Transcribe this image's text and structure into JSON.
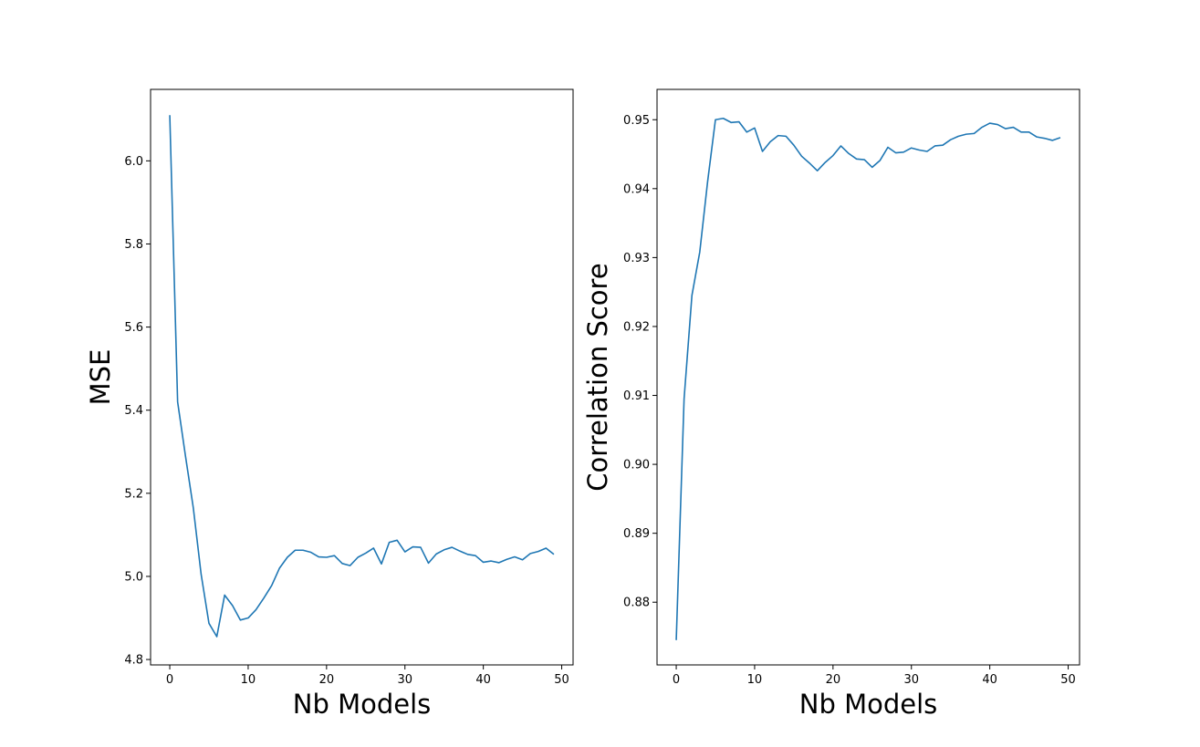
{
  "colors": {
    "series": "#1f77b4",
    "axis": "#000000",
    "background": "#ffffff"
  },
  "chart_data": [
    {
      "type": "line",
      "xlabel": "Nb Models",
      "ylabel": "MSE",
      "xlim": [
        -2.45,
        51.45
      ],
      "ylim": [
        4.787,
        6.172
      ],
      "xticks": [
        0,
        10,
        20,
        30,
        40,
        50
      ],
      "xtick_labels": [
        "0",
        "10",
        "20",
        "30",
        "40",
        "50"
      ],
      "yticks": [
        4.8,
        5.0,
        5.2,
        5.4,
        5.6,
        5.8,
        6.0
      ],
      "ytick_labels": [
        "4.8",
        "5.0",
        "5.2",
        "5.4",
        "5.6",
        "5.8",
        "6.0"
      ],
      "grid": false,
      "x": [
        0,
        1,
        2,
        3,
        4,
        5,
        6,
        7,
        8,
        9,
        10,
        11,
        12,
        13,
        14,
        15,
        16,
        17,
        18,
        19,
        20,
        21,
        22,
        23,
        24,
        25,
        26,
        27,
        28,
        29,
        30,
        31,
        32,
        33,
        34,
        35,
        36,
        37,
        38,
        39,
        40,
        41,
        42,
        43,
        44,
        45,
        46,
        47,
        48,
        49
      ],
      "values": [
        6.11,
        5.42,
        5.29,
        5.165,
        5.005,
        4.887,
        4.855,
        4.955,
        4.93,
        4.895,
        4.9,
        4.92,
        4.948,
        4.978,
        5.02,
        5.046,
        5.063,
        5.063,
        5.058,
        5.047,
        5.046,
        5.05,
        5.031,
        5.026,
        5.046,
        5.056,
        5.068,
        5.03,
        5.082,
        5.087,
        5.059,
        5.071,
        5.07,
        5.032,
        5.054,
        5.064,
        5.07,
        5.061,
        5.053,
        5.05,
        5.034,
        5.037,
        5.033,
        5.041,
        5.047,
        5.04,
        5.055,
        5.06,
        5.068,
        5.053
      ]
    },
    {
      "type": "line",
      "xlabel": "Nb Models",
      "ylabel": "Correlation Score",
      "xlim": [
        -2.45,
        51.45
      ],
      "ylim": [
        0.8709,
        0.9544
      ],
      "xticks": [
        0,
        10,
        20,
        30,
        40,
        50
      ],
      "xtick_labels": [
        "0",
        "10",
        "20",
        "30",
        "40",
        "50"
      ],
      "yticks": [
        0.88,
        0.89,
        0.9,
        0.91,
        0.92,
        0.93,
        0.94,
        0.95
      ],
      "ytick_labels": [
        "0.88",
        "0.89",
        "0.90",
        "0.91",
        "0.92",
        "0.93",
        "0.94",
        "0.95"
      ],
      "grid": false,
      "x": [
        0,
        1,
        2,
        3,
        4,
        5,
        6,
        7,
        8,
        9,
        10,
        11,
        12,
        13,
        14,
        15,
        16,
        17,
        18,
        19,
        20,
        21,
        22,
        23,
        24,
        25,
        26,
        27,
        28,
        29,
        30,
        31,
        32,
        33,
        34,
        35,
        36,
        37,
        38,
        39,
        40,
        41,
        42,
        43,
        44,
        45,
        46,
        47,
        48,
        49
      ],
      "values": [
        0.8745,
        0.9095,
        0.9245,
        0.9308,
        0.941,
        0.95,
        0.9502,
        0.9496,
        0.9497,
        0.9482,
        0.9488,
        0.9454,
        0.9468,
        0.9477,
        0.9476,
        0.9463,
        0.9447,
        0.9437,
        0.9426,
        0.9438,
        0.9448,
        0.9462,
        0.9451,
        0.9443,
        0.9442,
        0.9431,
        0.9441,
        0.946,
        0.9452,
        0.9453,
        0.9459,
        0.9456,
        0.9454,
        0.9462,
        0.9463,
        0.9471,
        0.9476,
        0.9479,
        0.948,
        0.9489,
        0.9495,
        0.9493,
        0.9487,
        0.9489,
        0.9482,
        0.9482,
        0.9475,
        0.9473,
        0.947,
        0.9474
      ]
    }
  ]
}
